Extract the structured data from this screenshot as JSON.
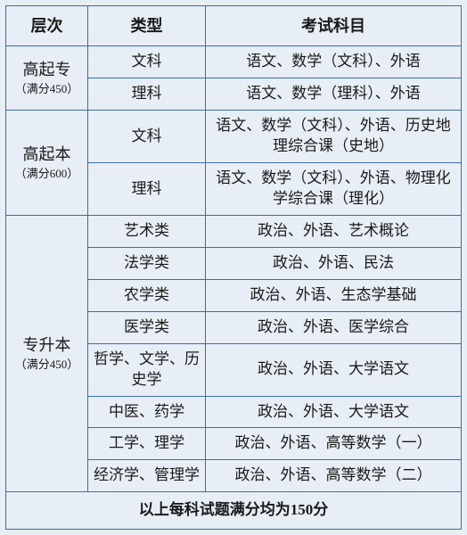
{
  "colors": {
    "border": "#3a6ca8",
    "background": "#e8eef5",
    "text": "#1a1a1a"
  },
  "header": {
    "level": "层次",
    "type": "类型",
    "subjects": "考试科目"
  },
  "levels": {
    "gqz": {
      "name": "高起专",
      "note": "（满分450）"
    },
    "gqb": {
      "name": "高起本",
      "note": "（满分600）"
    },
    "zsb": {
      "name": "专升本",
      "note": "（满分450）"
    }
  },
  "rows": {
    "gqz_wk": {
      "type": "文科",
      "subjects": "语文、数学（文科）、外语"
    },
    "gqz_lk": {
      "type": "理科",
      "subjects": "语文、数学（理科）、外语"
    },
    "gqb_wk": {
      "type": "文科",
      "subjects": "语文、数学（文科）、外语、历史地理综合课（史地）"
    },
    "gqb_lk": {
      "type": "理科",
      "subjects": "语文、数学（文科）、外语、物理化学综合课（理化）"
    },
    "zsb_ys": {
      "type": "艺术类",
      "subjects": "政治、外语、艺术概论"
    },
    "zsb_fx": {
      "type": "法学类",
      "subjects": "政治、外语、民法"
    },
    "zsb_nx": {
      "type": "农学类",
      "subjects": "政治、外语、生态学基础"
    },
    "zsb_yx": {
      "type": "医学类",
      "subjects": "政治、外语、医学综合"
    },
    "zsb_zx": {
      "type": "哲学、文学、历史学",
      "subjects": "政治、外语、大学语文"
    },
    "zsb_zy": {
      "type": "中医、药学",
      "subjects": "政治、外语、大学语文"
    },
    "zsb_gl": {
      "type": "工学、理学",
      "subjects": "政治、外语、高等数学（一）"
    },
    "zsb_jg": {
      "type": "经济学、管理学",
      "subjects": "政治、外语、高等数学（二）"
    }
  },
  "footer": "以上每科试题满分均为150分"
}
